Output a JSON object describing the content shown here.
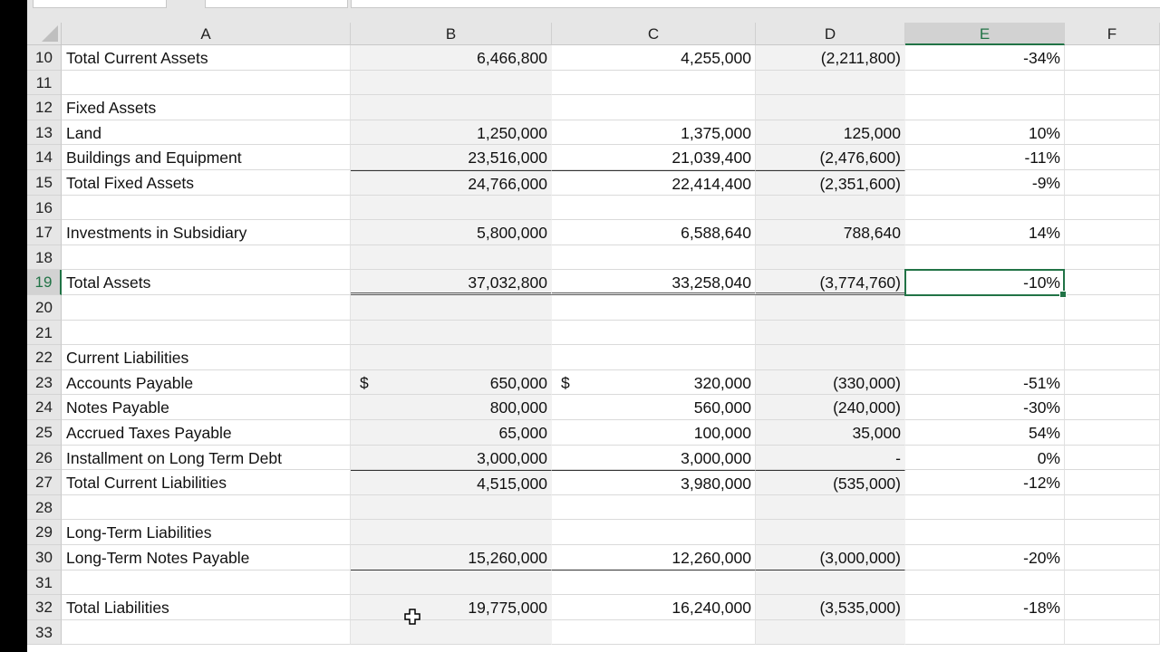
{
  "columns": [
    "A",
    "B",
    "C",
    "D",
    "E",
    "F"
  ],
  "selected_column": "E",
  "selected_row": "19",
  "selected_cell": "E19",
  "rows": [
    {
      "num": "10",
      "label": "Total Current Assets",
      "b": "6,466,800",
      "c": "4,255,000",
      "d": "(2,211,800)",
      "e": "-34%"
    },
    {
      "num": "11",
      "label": "",
      "b": "",
      "c": "",
      "d": "",
      "e": ""
    },
    {
      "num": "12",
      "label": "Fixed Assets",
      "b": "",
      "c": "",
      "d": "",
      "e": ""
    },
    {
      "num": "13",
      "label": "Land",
      "b": "1,250,000",
      "c": "1,375,000",
      "d": "125,000",
      "e": "10%"
    },
    {
      "num": "14",
      "label": "Buildings and Equipment",
      "b": "23,516,000",
      "c": "21,039,400",
      "d": "(2,476,600)",
      "e": "-11%"
    },
    {
      "num": "15",
      "label": "Total Fixed Assets",
      "b": "24,766,000",
      "c": "22,414,400",
      "d": "(2,351,600)",
      "e": "-9%"
    },
    {
      "num": "16",
      "label": "",
      "b": "",
      "c": "",
      "d": "",
      "e": ""
    },
    {
      "num": "17",
      "label": "Investments in Subsidiary",
      "b": "5,800,000",
      "c": "6,588,640",
      "d": "788,640",
      "e": "14%"
    },
    {
      "num": "18",
      "label": "",
      "b": "",
      "c": "",
      "d": "",
      "e": ""
    },
    {
      "num": "19",
      "label": "Total Assets",
      "b": "37,032,800",
      "c": "33,258,040",
      "d": "(3,774,760)",
      "e": "-10%"
    },
    {
      "num": "20",
      "label": "",
      "b": "",
      "c": "",
      "d": "",
      "e": ""
    },
    {
      "num": "21",
      "label": "",
      "b": "",
      "c": "",
      "d": "",
      "e": ""
    },
    {
      "num": "22",
      "label": "Current Liabilities",
      "b": "",
      "c": "",
      "d": "",
      "e": ""
    },
    {
      "num": "23",
      "label": "Accounts Payable",
      "b": "650,000",
      "c": "320,000",
      "d": "(330,000)",
      "e": "-51%",
      "b_currency": "$",
      "c_currency": "$"
    },
    {
      "num": "24",
      "label": "Notes Payable",
      "b": "800,000",
      "c": "560,000",
      "d": "(240,000)",
      "e": "-30%"
    },
    {
      "num": "25",
      "label": "Accrued Taxes Payable",
      "b": "65,000",
      "c": "100,000",
      "d": "35,000",
      "e": "54%"
    },
    {
      "num": "26",
      "label": "Installment on Long Term Debt",
      "b": "3,000,000",
      "c": "3,000,000",
      "d": "-",
      "e": "0%"
    },
    {
      "num": "27",
      "label": "Total Current Liabilities",
      "b": "4,515,000",
      "c": "3,980,000",
      "d": "(535,000)",
      "e": "-12%"
    },
    {
      "num": "28",
      "label": "",
      "b": "",
      "c": "",
      "d": "",
      "e": ""
    },
    {
      "num": "29",
      "label": "Long-Term Liabilities",
      "b": "",
      "c": "",
      "d": "",
      "e": ""
    },
    {
      "num": "30",
      "label": "Long-Term Notes Payable",
      "b": "15,260,000",
      "c": "12,260,000",
      "d": "(3,000,000)",
      "e": "-20%"
    },
    {
      "num": "31",
      "label": "",
      "b": "",
      "c": "",
      "d": "",
      "e": ""
    },
    {
      "num": "32",
      "label": "Total Liabilities",
      "b": "19,775,000",
      "c": "16,240,000",
      "d": "(3,535,000)",
      "e": "-18%"
    },
    {
      "num": "33",
      "label": "",
      "b": "",
      "c": "",
      "d": "",
      "e": ""
    }
  ]
}
